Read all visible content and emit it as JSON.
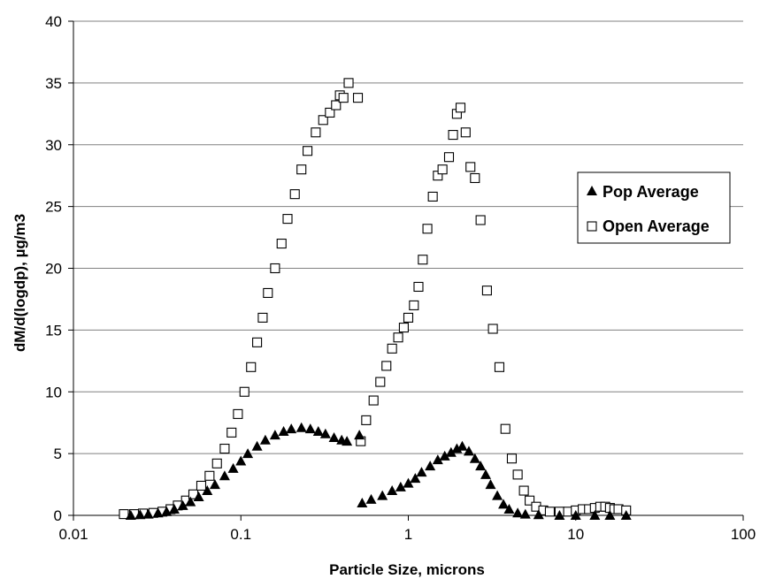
{
  "chart_data": {
    "type": "scatter",
    "title": "",
    "xlabel": "Particle Size, microns",
    "ylabel": "dM/d(logdp), µg/m3",
    "x_scale": "log",
    "xlim": [
      0.01,
      100
    ],
    "ylim": [
      0,
      40
    ],
    "x_ticks": [
      "0.01",
      "0.1",
      "1",
      "10",
      "100"
    ],
    "y_ticks": [
      "0",
      "5",
      "10",
      "15",
      "20",
      "25",
      "30",
      "35",
      "40"
    ],
    "grid": "horizontal",
    "legend_position": "right",
    "series": [
      {
        "name": "Pop Average",
        "marker": "filled-triangle",
        "color": "#000000",
        "points": [
          [
            0.022,
            0.0
          ],
          [
            0.025,
            0.05
          ],
          [
            0.028,
            0.1
          ],
          [
            0.032,
            0.2
          ],
          [
            0.036,
            0.3
          ],
          [
            0.04,
            0.5
          ],
          [
            0.045,
            0.8
          ],
          [
            0.05,
            1.1
          ],
          [
            0.056,
            1.5
          ],
          [
            0.063,
            2.0
          ],
          [
            0.07,
            2.5
          ],
          [
            0.08,
            3.2
          ],
          [
            0.09,
            3.8
          ],
          [
            0.1,
            4.4
          ],
          [
            0.11,
            5.0
          ],
          [
            0.125,
            5.6
          ],
          [
            0.14,
            6.1
          ],
          [
            0.16,
            6.5
          ],
          [
            0.18,
            6.8
          ],
          [
            0.2,
            7.0
          ],
          [
            0.23,
            7.1
          ],
          [
            0.26,
            7.0
          ],
          [
            0.29,
            6.8
          ],
          [
            0.32,
            6.6
          ],
          [
            0.36,
            6.3
          ],
          [
            0.4,
            6.1
          ],
          [
            0.43,
            6.0
          ],
          [
            0.51,
            6.5
          ],
          [
            0.53,
            1.0
          ],
          [
            0.6,
            1.3
          ],
          [
            0.7,
            1.6
          ],
          [
            0.8,
            2.0
          ],
          [
            0.9,
            2.3
          ],
          [
            1.0,
            2.6
          ],
          [
            1.1,
            3.0
          ],
          [
            1.2,
            3.5
          ],
          [
            1.35,
            4.0
          ],
          [
            1.5,
            4.5
          ],
          [
            1.65,
            4.8
          ],
          [
            1.8,
            5.1
          ],
          [
            1.95,
            5.4
          ],
          [
            2.1,
            5.6
          ],
          [
            2.3,
            5.2
          ],
          [
            2.5,
            4.6
          ],
          [
            2.7,
            4.0
          ],
          [
            2.9,
            3.3
          ],
          [
            3.1,
            2.5
          ],
          [
            3.4,
            1.6
          ],
          [
            3.7,
            0.9
          ],
          [
            4.0,
            0.5
          ],
          [
            4.5,
            0.2
          ],
          [
            5.0,
            0.1
          ],
          [
            6.0,
            0.05
          ],
          [
            8.0,
            0.0
          ],
          [
            10.0,
            0.0
          ],
          [
            13.0,
            0.0
          ],
          [
            16.0,
            0.0
          ],
          [
            20.0,
            0.0
          ]
        ]
      },
      {
        "name": "Open Average",
        "marker": "open-square",
        "color": "#000000",
        "points": [
          [
            0.02,
            0.1
          ],
          [
            0.023,
            0.1
          ],
          [
            0.026,
            0.15
          ],
          [
            0.03,
            0.2
          ],
          [
            0.034,
            0.3
          ],
          [
            0.038,
            0.5
          ],
          [
            0.042,
            0.8
          ],
          [
            0.047,
            1.2
          ],
          [
            0.052,
            1.7
          ],
          [
            0.058,
            2.4
          ],
          [
            0.065,
            3.2
          ],
          [
            0.072,
            4.2
          ],
          [
            0.08,
            5.4
          ],
          [
            0.088,
            6.7
          ],
          [
            0.096,
            8.2
          ],
          [
            0.105,
            10.0
          ],
          [
            0.115,
            12.0
          ],
          [
            0.125,
            14.0
          ],
          [
            0.135,
            16.0
          ],
          [
            0.145,
            18.0
          ],
          [
            0.16,
            20.0
          ],
          [
            0.175,
            22.0
          ],
          [
            0.19,
            24.0
          ],
          [
            0.21,
            26.0
          ],
          [
            0.23,
            28.0
          ],
          [
            0.25,
            29.5
          ],
          [
            0.28,
            31.0
          ],
          [
            0.31,
            32.0
          ],
          [
            0.34,
            32.6
          ],
          [
            0.37,
            33.2
          ],
          [
            0.39,
            34.0
          ],
          [
            0.41,
            33.8
          ],
          [
            0.44,
            35.0
          ],
          [
            0.5,
            33.8
          ],
          [
            0.52,
            6.0
          ],
          [
            0.56,
            7.7
          ],
          [
            0.62,
            9.3
          ],
          [
            0.68,
            10.8
          ],
          [
            0.74,
            12.1
          ],
          [
            0.8,
            13.5
          ],
          [
            0.87,
            14.4
          ],
          [
            0.94,
            15.2
          ],
          [
            1.0,
            16.0
          ],
          [
            1.08,
            17.0
          ],
          [
            1.15,
            18.5
          ],
          [
            1.22,
            20.7
          ],
          [
            1.3,
            23.2
          ],
          [
            1.4,
            25.8
          ],
          [
            1.5,
            27.5
          ],
          [
            1.6,
            28.0
          ],
          [
            1.75,
            29.0
          ],
          [
            1.85,
            30.8
          ],
          [
            1.95,
            32.5
          ],
          [
            2.05,
            33.0
          ],
          [
            2.2,
            31.0
          ],
          [
            2.35,
            28.2
          ],
          [
            2.5,
            27.3
          ],
          [
            2.7,
            23.9
          ],
          [
            2.95,
            18.2
          ],
          [
            3.2,
            15.1
          ],
          [
            3.5,
            12.0
          ],
          [
            3.8,
            7.0
          ],
          [
            4.15,
            4.6
          ],
          [
            4.5,
            3.3
          ],
          [
            4.9,
            2.0
          ],
          [
            5.3,
            1.2
          ],
          [
            5.8,
            0.7
          ],
          [
            6.4,
            0.4
          ],
          [
            7.0,
            0.3
          ],
          [
            8.0,
            0.3
          ],
          [
            9.0,
            0.3
          ],
          [
            10.0,
            0.4
          ],
          [
            11.0,
            0.5
          ],
          [
            12.0,
            0.5
          ],
          [
            13.0,
            0.6
          ],
          [
            14.0,
            0.7
          ],
          [
            15.0,
            0.7
          ],
          [
            16.0,
            0.6
          ],
          [
            17.0,
            0.5
          ],
          [
            18.0,
            0.5
          ],
          [
            20.0,
            0.4
          ]
        ]
      }
    ]
  }
}
